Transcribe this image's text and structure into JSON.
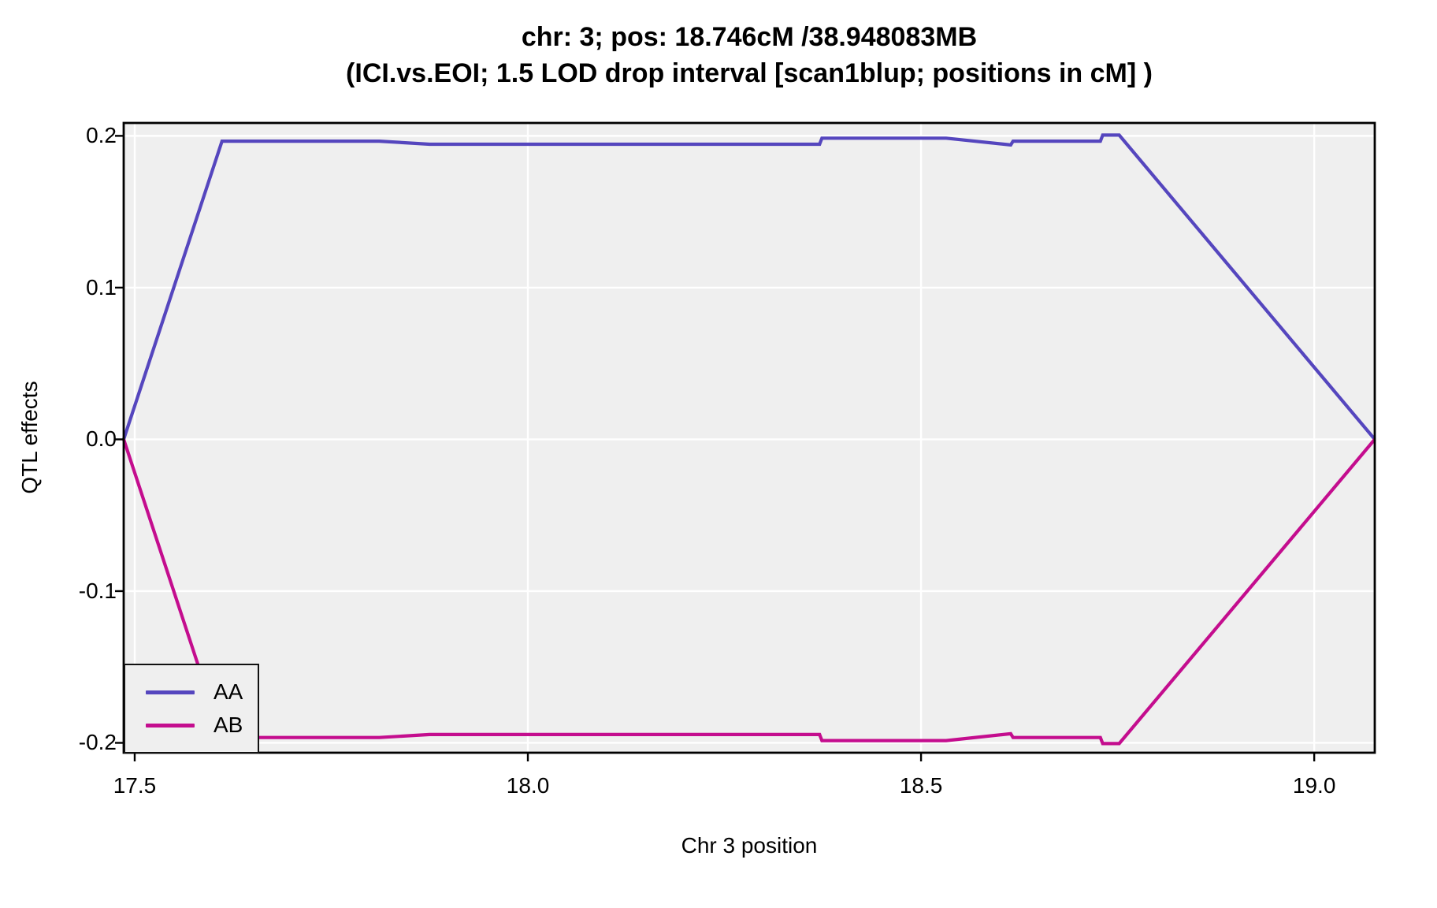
{
  "title": {
    "line1": "chr: 3; pos: 18.746cM /38.948083MB",
    "line2": "(ICI.vs.EOI; 1.5 LOD drop interval [scan1blup; positions in cM] )"
  },
  "axes": {
    "x_label": "Chr 3 position",
    "y_label": "QTL effects"
  },
  "legend": {
    "position": "bottom-left",
    "entries": [
      {
        "label": "AA",
        "color": "#5546BE"
      },
      {
        "label": "AB",
        "color": "#C40D8E"
      }
    ]
  },
  "colors": {
    "panel_bg": "#EFEFEF",
    "gridline": "#FFFFFF",
    "panel_border": "#000000",
    "tick": "#000000",
    "text": "#000000",
    "series_aa": "#5546BE",
    "series_ab": "#C40D8E"
  },
  "chart_data": {
    "type": "line",
    "title": "chr: 3; pos: 18.746cM /38.948083MB (ICI.vs.EOI; 1.5 LOD drop interval [scan1blup; positions in cM] )",
    "xlabel": "Chr 3 position",
    "ylabel": "QTL effects",
    "xlim": [
      17.486,
      19.077
    ],
    "ylim": [
      -0.2065,
      0.2085
    ],
    "x_ticks": [
      17.5,
      18.0,
      18.5,
      19.0
    ],
    "x_tick_labels": [
      "17.5",
      "18.0",
      "18.5",
      "19.0"
    ],
    "y_ticks": [
      0.2,
      0.1,
      0.0,
      -0.1,
      -0.2
    ],
    "y_tick_labels": [
      "0.2",
      "0.1",
      "0.0",
      "-0.1",
      "-0.2"
    ],
    "grid": "white major gridlines on gray panel, no minor gridlines",
    "legend_position": "bottom-left inside panel",
    "series": [
      {
        "name": "AA",
        "color": "#5546BE",
        "points": [
          [
            17.486,
            0.0
          ],
          [
            17.611,
            0.1965
          ],
          [
            17.811,
            0.1965
          ],
          [
            17.875,
            0.1945
          ],
          [
            18.371,
            0.1945
          ],
          [
            18.374,
            0.1985
          ],
          [
            18.532,
            0.1985
          ],
          [
            18.614,
            0.194
          ],
          [
            18.617,
            0.1965
          ],
          [
            18.728,
            0.1965
          ],
          [
            18.731,
            0.2005
          ],
          [
            18.752,
            0.2005
          ],
          [
            19.077,
            0.0
          ]
        ]
      },
      {
        "name": "AB",
        "color": "#C40D8E",
        "points": [
          [
            17.486,
            0.0
          ],
          [
            17.611,
            -0.1965
          ],
          [
            17.811,
            -0.1965
          ],
          [
            17.875,
            -0.1945
          ],
          [
            18.371,
            -0.1945
          ],
          [
            18.374,
            -0.1985
          ],
          [
            18.532,
            -0.1985
          ],
          [
            18.614,
            -0.194
          ],
          [
            18.617,
            -0.1965
          ],
          [
            18.728,
            -0.1965
          ],
          [
            18.731,
            -0.2005
          ],
          [
            18.752,
            -0.2005
          ],
          [
            19.077,
            0.0
          ]
        ]
      }
    ]
  },
  "layout_note": "static chart image; nothing is interactive"
}
